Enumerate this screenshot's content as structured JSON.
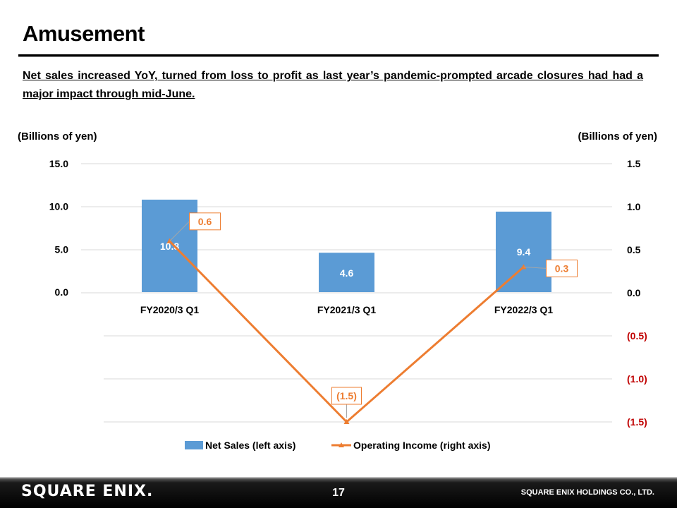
{
  "page": {
    "title": "Amusement",
    "subtitle": "Net sales increased YoY, turned from loss to profit as last year’s pandemic-prompted  arcade closures had had a major impact through mid-June.",
    "unit_left": "(Billions of yen)",
    "unit_right": "(Billions of yen)",
    "footer": {
      "brand": "SQUARE ENIX.",
      "page_number": "17",
      "company": "SQUARE ENIX HOLDINGS CO., LTD."
    }
  },
  "chart_data": {
    "type": "bar",
    "categories": [
      "FY2020/3 Q1",
      "FY2021/3 Q1",
      "FY2022/3 Q1"
    ],
    "series": [
      {
        "name": "Net Sales (left axis)",
        "kind": "bar",
        "axis": "left",
        "values": [
          10.8,
          4.6,
          9.4
        ],
        "labels": [
          "10.8",
          "4.6",
          "9.4"
        ],
        "color": "#5b9bd5"
      },
      {
        "name": "Operating Income (right axis)",
        "kind": "line",
        "axis": "right",
        "values": [
          0.6,
          -1.5,
          0.3
        ],
        "labels": [
          "0.6",
          "(1.5)",
          "0.3"
        ],
        "color": "#ed7d31"
      }
    ],
    "left_axis": {
      "range": [
        0,
        15
      ],
      "ticks": [
        0,
        5,
        10,
        15
      ],
      "tick_labels": [
        "0.0",
        "5.0",
        "10.0",
        "15.0"
      ]
    },
    "right_axis": {
      "range": [
        -1.5,
        1.5
      ],
      "ticks": [
        1.5,
        1.0,
        0.5,
        0.0,
        -0.5,
        -1.0,
        -1.5
      ],
      "tick_labels": [
        "1.5",
        "1.0",
        "0.5",
        "0.0",
        "(0.5)",
        "(1.0)",
        "(1.5)"
      ],
      "negative_color": "#c00000"
    },
    "grid": true,
    "legend": "bottom"
  }
}
